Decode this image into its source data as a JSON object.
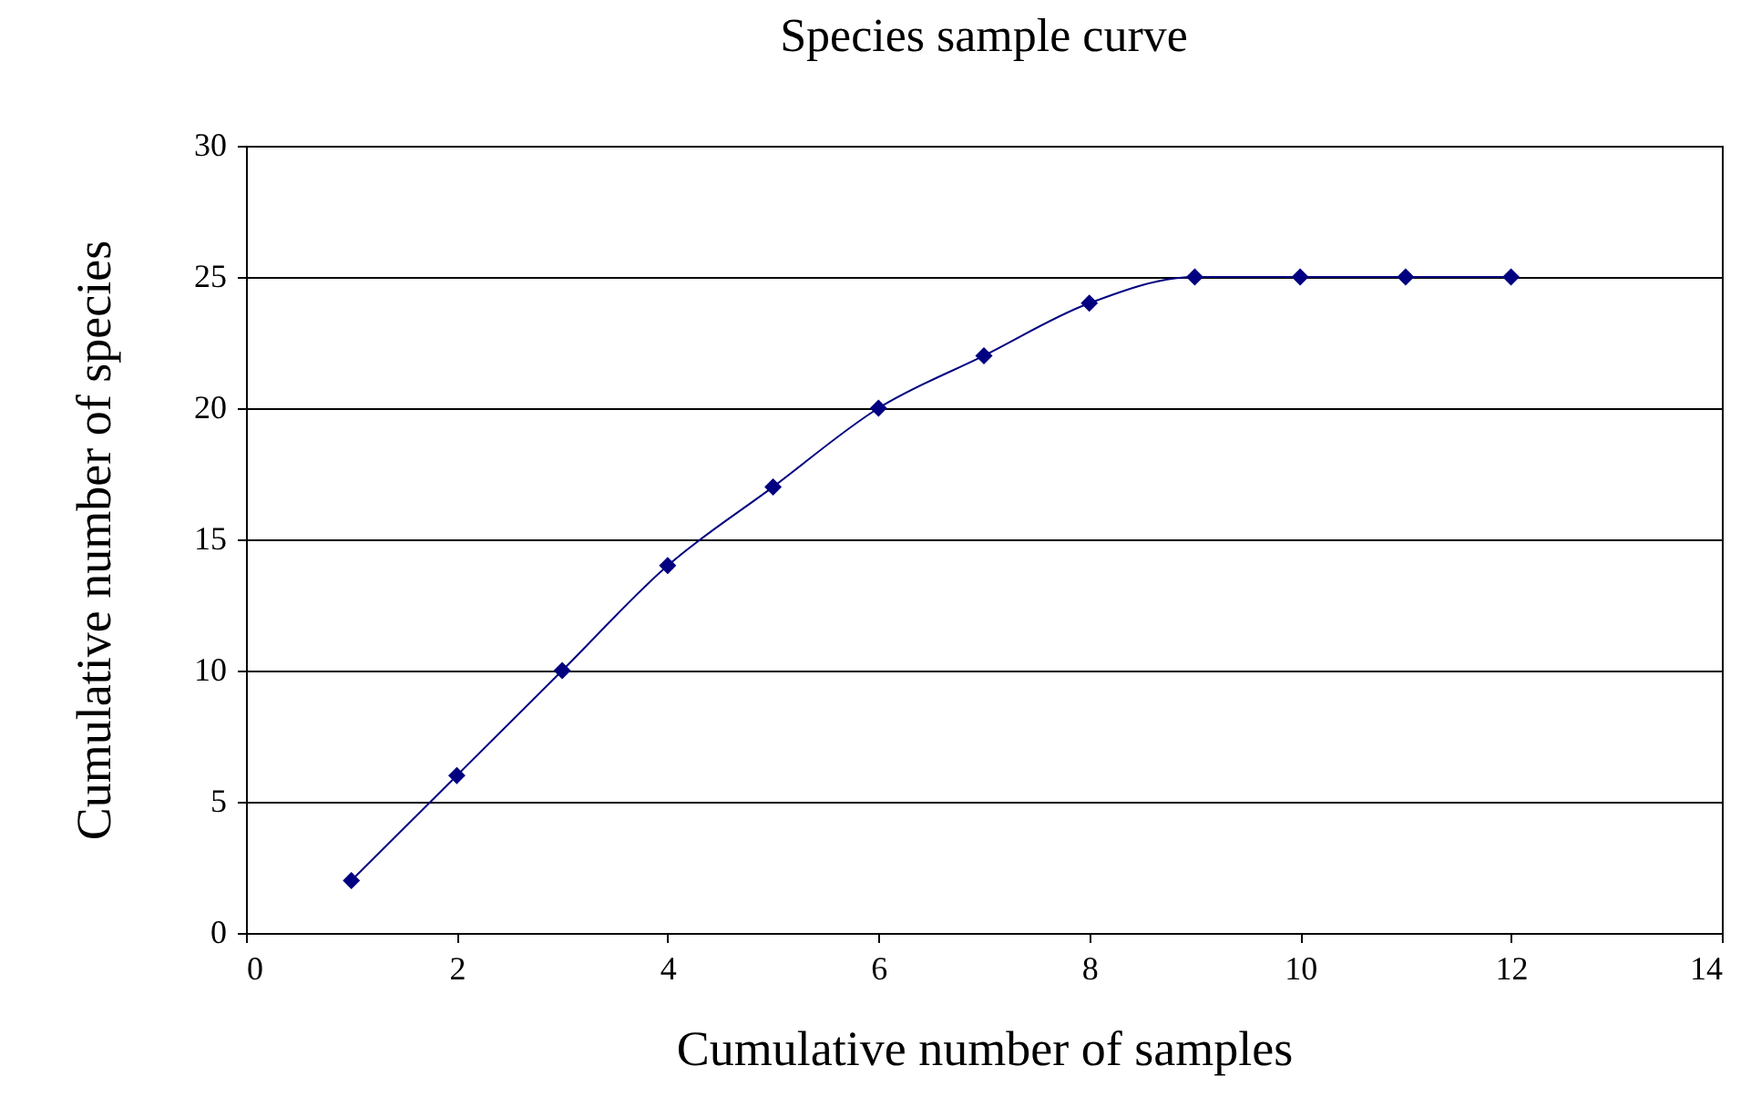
{
  "chart_data": {
    "type": "line",
    "title": "Species sample curve",
    "xlabel": "Cumulative number of samples",
    "ylabel": "Cumulative number of species",
    "x": [
      1,
      2,
      3,
      4,
      5,
      6,
      7,
      8,
      9,
      10,
      11,
      12
    ],
    "series": [
      {
        "color": "#000080",
        "values": [
          2,
          6,
          10,
          14,
          17,
          20,
          22,
          24,
          25,
          25,
          25,
          25
        ]
      }
    ],
    "xlim": [
      0,
      14
    ],
    "xticks": [
      0,
      2,
      4,
      6,
      8,
      10,
      12,
      14
    ],
    "ylim": [
      0,
      30
    ],
    "yticks": [
      0,
      5,
      10,
      15,
      20,
      25,
      30
    ],
    "grid": "y",
    "marker": "diamond",
    "line_style": "solid"
  }
}
